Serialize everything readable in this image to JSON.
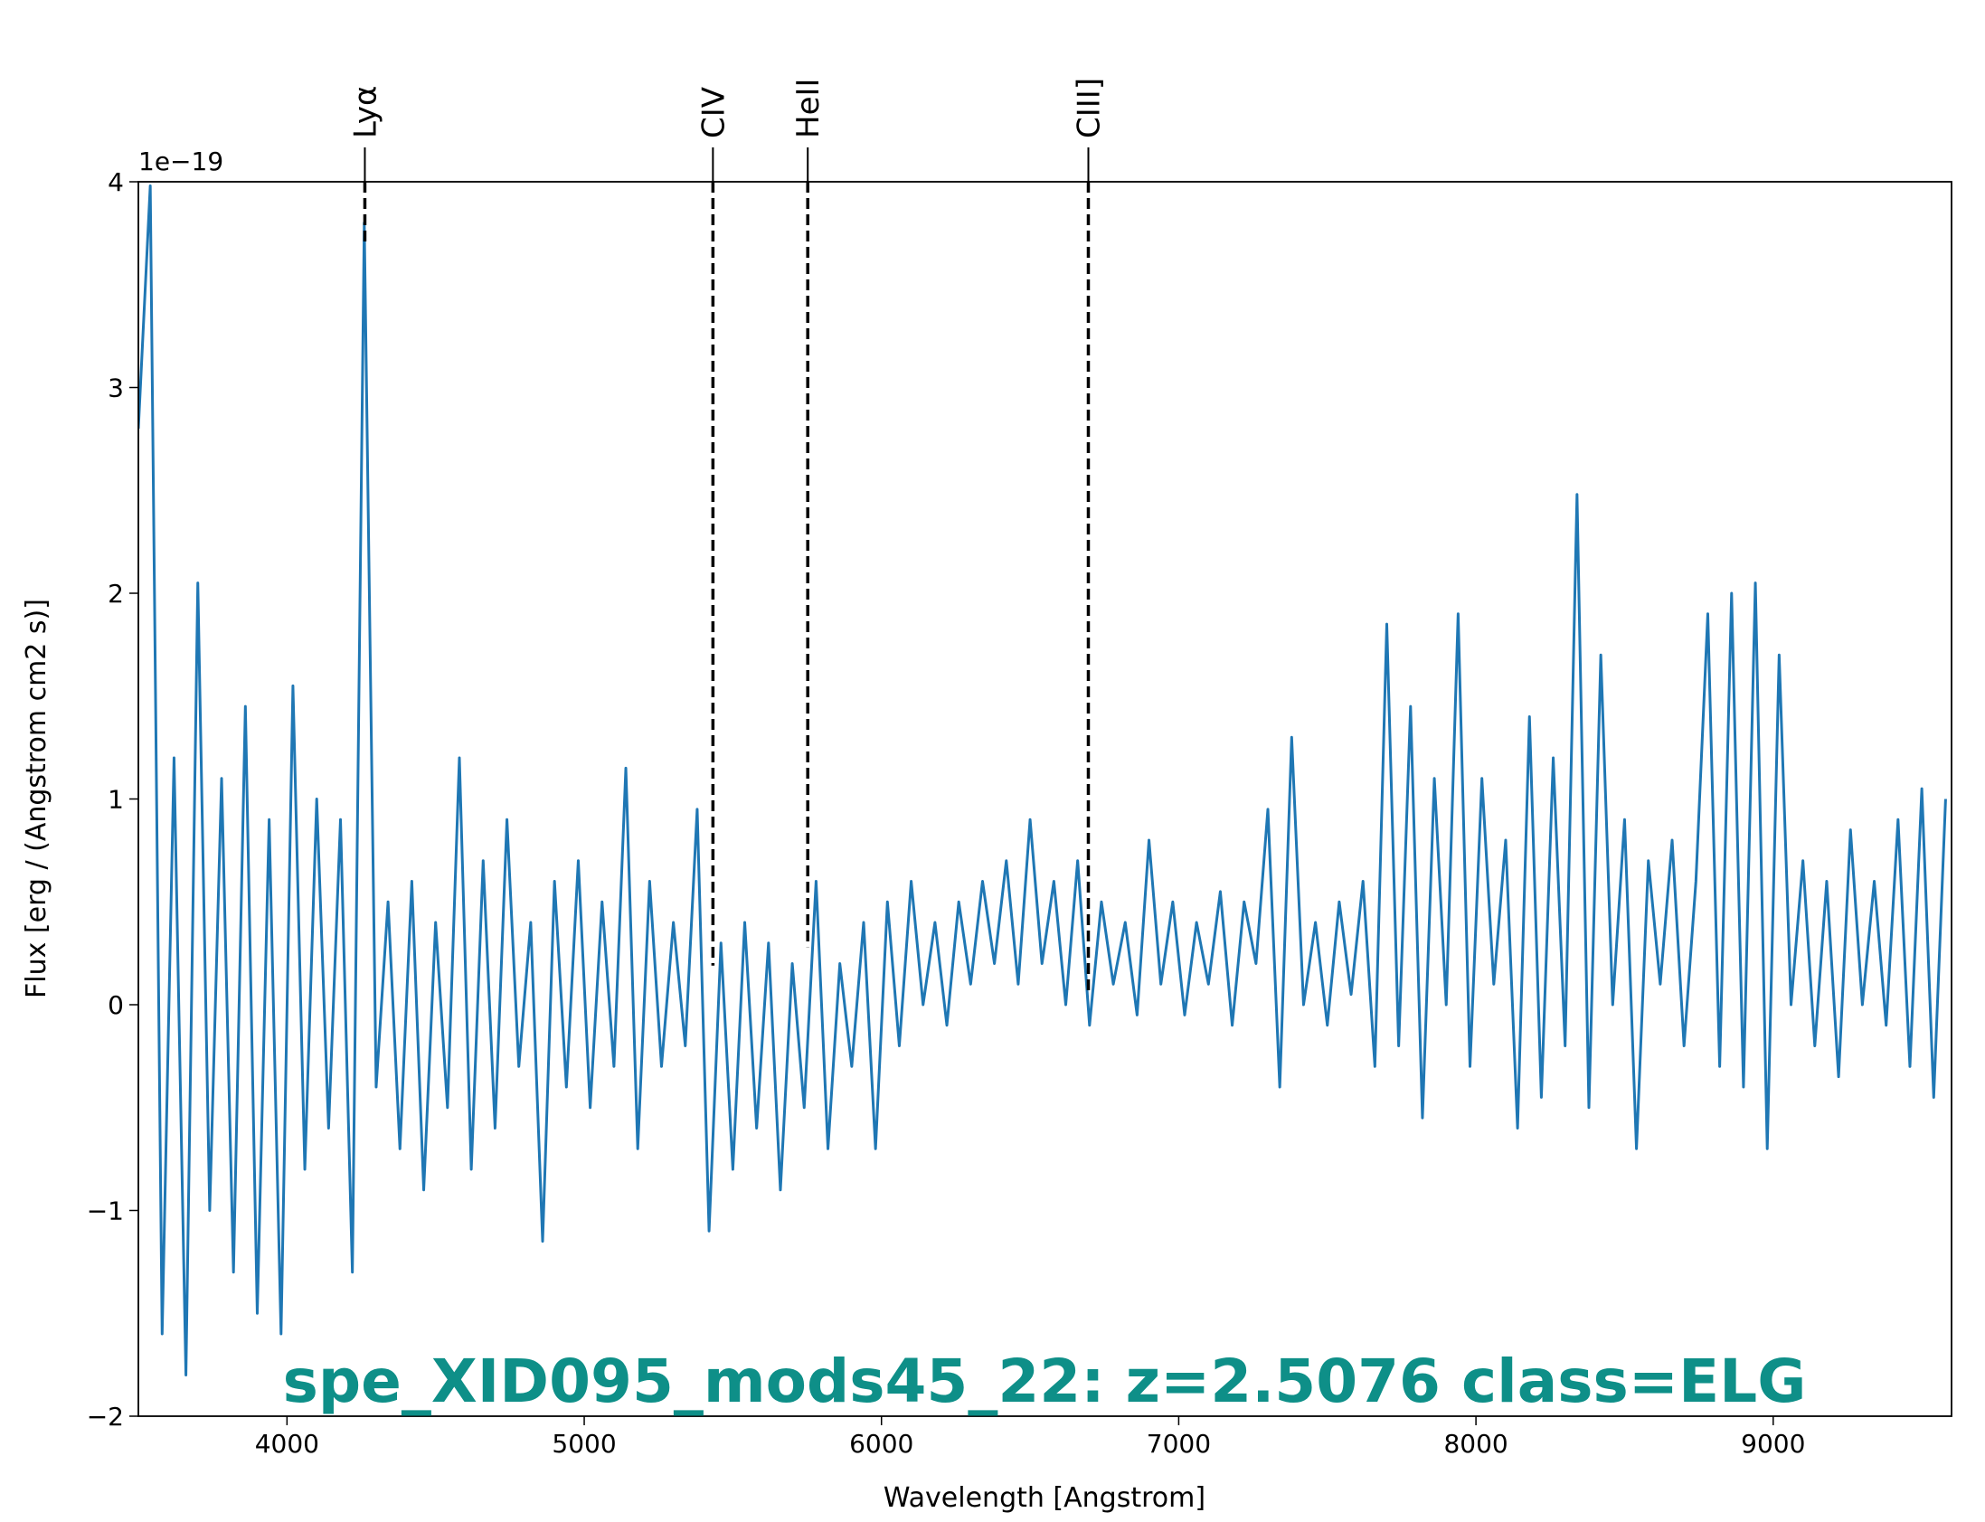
{
  "chart_data": {
    "type": "line",
    "title": "spe_XID095_mods45_22: z=2.5076 class=ELG",
    "x_label": "Wavelength [Angstrom]",
    "y_label": "Flux [erg / (Angstrom cm2 s)]",
    "y_offset_label": "1e−19",
    "xlim": [
      3500,
      9600
    ],
    "ylim": [
      -2,
      4
    ],
    "xticks": [
      4000,
      5000,
      6000,
      7000,
      8000,
      9000
    ],
    "yticks": [
      {
        "value": -2,
        "label": "−2"
      },
      {
        "value": -1,
        "label": "−1"
      },
      0,
      1,
      2,
      3,
      4
    ],
    "grid": false,
    "lines": [
      {
        "label": "Lyα",
        "x": 4262,
        "y": 3.7
      },
      {
        "label": "CIV",
        "x": 5433,
        "y": 0.19
      },
      {
        "label": "HeII",
        "x": 5752,
        "y": 0.28
      },
      {
        "label": "CIII]",
        "x": 6696,
        "y": 0.06
      }
    ],
    "x": [
      3500,
      3540,
      3580,
      3620,
      3660,
      3700,
      3740,
      3780,
      3820,
      3860,
      3900,
      3940,
      3980,
      4020,
      4060,
      4100,
      4140,
      4180,
      4220,
      4260,
      4300,
      4340,
      4380,
      4420,
      4460,
      4500,
      4540,
      4580,
      4620,
      4660,
      4700,
      4740,
      4780,
      4820,
      4860,
      4900,
      4940,
      4980,
      5020,
      5060,
      5100,
      5140,
      5180,
      5220,
      5260,
      5300,
      5340,
      5380,
      5420,
      5460,
      5500,
      5540,
      5580,
      5620,
      5660,
      5700,
      5740,
      5780,
      5820,
      5860,
      5900,
      5940,
      5980,
      6020,
      6060,
      6100,
      6140,
      6180,
      6220,
      6260,
      6300,
      6340,
      6380,
      6420,
      6460,
      6500,
      6540,
      6580,
      6620,
      6660,
      6700,
      6740,
      6780,
      6820,
      6860,
      6900,
      6940,
      6980,
      7020,
      7060,
      7100,
      7140,
      7180,
      7220,
      7260,
      7300,
      7340,
      7380,
      7420,
      7460,
      7500,
      7540,
      7580,
      7620,
      7660,
      7700,
      7740,
      7780,
      7820,
      7860,
      7900,
      7940,
      7980,
      8020,
      8060,
      8100,
      8140,
      8180,
      8220,
      8260,
      8300,
      8340,
      8380,
      8420,
      8460,
      8500,
      8540,
      8580,
      8620,
      8660,
      8700,
      8740,
      8780,
      8820,
      8860,
      8900,
      8940,
      8980,
      9020,
      9060,
      9100,
      9140,
      9180,
      9220,
      9260,
      9300,
      9340,
      9380,
      9420,
      9460,
      9500,
      9540,
      9580
    ],
    "series": [
      {
        "color": "#1f77b4",
        "values": [
          2.8,
          3.98,
          -1.6,
          1.2,
          -1.8,
          2.05,
          -1.0,
          1.1,
          -1.3,
          1.45,
          -1.5,
          0.9,
          -1.6,
          1.55,
          -0.8,
          1.0,
          -0.6,
          0.9,
          -1.3,
          3.8,
          -0.4,
          0.5,
          -0.7,
          0.6,
          -0.9,
          0.4,
          -0.5,
          1.2,
          -0.8,
          0.7,
          -0.6,
          0.9,
          -0.3,
          0.4,
          -1.15,
          0.6,
          -0.4,
          0.7,
          -0.5,
          0.5,
          -0.3,
          1.15,
          -0.7,
          0.6,
          -0.3,
          0.4,
          -0.2,
          0.95,
          -1.1,
          0.3,
          -0.8,
          0.4,
          -0.6,
          0.3,
          -0.9,
          0.2,
          -0.5,
          0.6,
          -0.7,
          0.2,
          -0.3,
          0.4,
          -0.7,
          0.5,
          -0.2,
          0.6,
          0.0,
          0.4,
          -0.1,
          0.5,
          0.1,
          0.6,
          0.2,
          0.7,
          0.1,
          0.9,
          0.2,
          0.6,
          0.0,
          0.7,
          -0.1,
          0.5,
          0.1,
          0.4,
          -0.05,
          0.8,
          0.1,
          0.5,
          -0.05,
          0.4,
          0.1,
          0.55,
          -0.1,
          0.5,
          0.2,
          0.95,
          -0.4,
          1.3,
          0.0,
          0.4,
          -0.1,
          0.5,
          0.05,
          0.6,
          -0.3,
          1.85,
          -0.2,
          1.45,
          -0.55,
          1.1,
          0.0,
          1.9,
          -0.3,
          1.1,
          0.1,
          0.8,
          -0.6,
          1.4,
          -0.45,
          1.2,
          -0.2,
          2.48,
          -0.5,
          1.7,
          0.0,
          0.9,
          -0.7,
          0.7,
          0.1,
          0.8,
          -0.2,
          0.6,
          1.9,
          -0.3,
          2.0,
          -0.4,
          2.05,
          -0.7,
          1.7,
          0.0,
          0.7,
          -0.2,
          0.6,
          -0.35,
          0.85,
          0.0,
          0.6,
          -0.1,
          0.9,
          -0.3,
          1.05,
          -0.45,
          1.0
        ]
      }
    ]
  }
}
